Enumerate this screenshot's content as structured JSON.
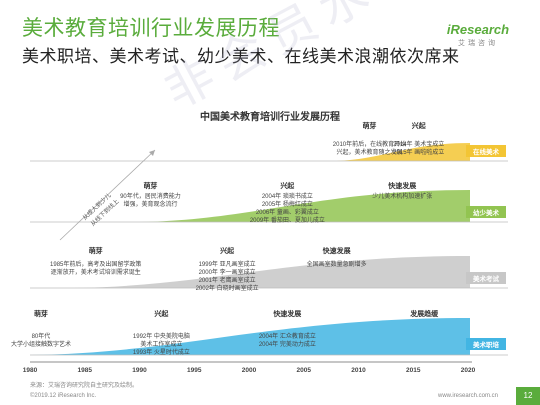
{
  "header": {
    "title": "美术教育培训行业发展历程",
    "subtitle": "美术职培、美术考试、幼少美术、在线美术浪潮依次席来"
  },
  "logo": {
    "name": "iResearch",
    "sub": "艾瑞咨询"
  },
  "watermark": "非会员水印",
  "colors": {
    "brand": "#5aac3c",
    "online": "#f3c534",
    "youth": "#92c451",
    "exam": "#c7c7c7",
    "vocational": "#42b5e3"
  },
  "chart_data": {
    "type": "area",
    "title": "中国美术教育培训行业发展历程",
    "x_axis": {
      "ticks": [
        "1980",
        "1985",
        "1990",
        "1995",
        "2000",
        "2005",
        "2010",
        "2015",
        "2020"
      ],
      "range": [
        1980,
        2020
      ]
    },
    "arrow_label": [
      "从成人到少儿",
      "从线下到线上"
    ],
    "series": [
      {
        "name": "在线美术",
        "stages": [
          {
            "label": "萌芽",
            "year": 2011,
            "lines": [
              "2010年前后，在线教育开始",
              "兴起，美术教育随之发展"
            ]
          },
          {
            "label": "兴起",
            "year": 2015.5,
            "lines": [
              "2014年 美术宝成立",
              "2015年 画啦啦成立"
            ]
          }
        ]
      },
      {
        "name": "幼少美术",
        "stages": [
          {
            "label": "萌芽",
            "year": 1991,
            "lines": [
              "90年代，居民消费能力",
              "增强，美育观念流行"
            ]
          },
          {
            "label": "兴起",
            "year": 2003.5,
            "lines": [
              "2004年 琐琐书成立",
              "2005年 杨梅红成立",
              "2006年 童画、彩翼成立",
              "2009年 番茄田、夏加儿成立"
            ]
          },
          {
            "label": "快速发展",
            "year": 2014,
            "lines": [
              "少儿美术机构加速扩张"
            ]
          }
        ]
      },
      {
        "name": "美术考试",
        "stages": [
          {
            "label": "萌芽",
            "year": 1986,
            "lines": [
              "1985年前后，高考及出国留学政策",
              "逐渐放开，美术考试培训需求诞生"
            ]
          },
          {
            "label": "兴起",
            "year": 1998,
            "lines": [
              "1999年 亚凡画室成立",
              "2000年 李一画室成立",
              "2001年 老鹰画室成立",
              "2002年 白晓时画室成立"
            ]
          },
          {
            "label": "快速发展",
            "year": 2008,
            "lines": [
              "全国画室数量急剧增多"
            ]
          }
        ]
      },
      {
        "name": "美术职培",
        "stages": [
          {
            "label": "萌芽",
            "year": 1981,
            "lines": [
              "80年代",
              "大学小组接触数字艺术"
            ]
          },
          {
            "label": "兴起",
            "year": 1992,
            "lines": [
              "1992年 中央美院电脑",
              "美术工作室成立",
              "1993年 火星时代成立"
            ]
          },
          {
            "label": "快速发展",
            "year": 2003.5,
            "lines": [
              "2004年 汇众教育成立",
              "2004年 完美动力成立"
            ]
          },
          {
            "label": "发展趋缓",
            "year": 2016,
            "lines": []
          }
        ]
      }
    ]
  },
  "footer": {
    "note": "来源：艾瑞咨询研究院自主研究及绘制。",
    "copyright": "©2019.12 iResearch Inc.",
    "url": "www.iresearch.com.cn",
    "page": "12"
  }
}
